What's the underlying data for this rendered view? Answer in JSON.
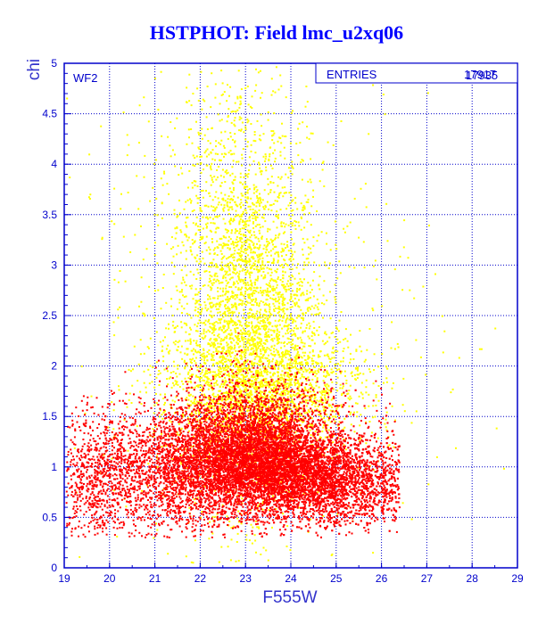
{
  "chart_data": {
    "type": "scatter",
    "title": "HSTPHOT: Field lmc_u2xq06",
    "xlabel": "F555W",
    "ylabel": "chi",
    "xlim": [
      19,
      29
    ],
    "ylim": [
      0,
      5
    ],
    "x_ticks": [
      "19",
      "20",
      "21",
      "22",
      "23",
      "24",
      "25",
      "26",
      "27",
      "28",
      "29"
    ],
    "y_ticks": [
      "0",
      "0.5",
      "1",
      "1.5",
      "2",
      "2.5",
      "3",
      "3.5",
      "4",
      "4.5",
      "5"
    ],
    "grid": true,
    "panel_label": "WF2",
    "stats_box": {
      "label": "ENTRIES",
      "value_a": "17917",
      "value_b": "17935"
    },
    "colors": {
      "series_yellow": "#ffff00",
      "series_red": "#ff0000",
      "axis": "#0000cc",
      "grid": "#0000cc",
      "title": "#0000ff"
    },
    "series": [
      {
        "color": "#ffff00",
        "marker": "dot",
        "values": [
          [
            22.3,
            2.5
          ],
          [
            22.6,
            3.2
          ],
          [
            22.9,
            4.6
          ],
          [
            23.1,
            2.9
          ],
          [
            23.3,
            3.5
          ],
          [
            23.5,
            3.8
          ],
          [
            23.2,
            2.2
          ],
          [
            22.5,
            2.1
          ],
          [
            22.8,
            2.7
          ],
          [
            23.7,
            2.4
          ],
          [
            24.1,
            2.6
          ],
          [
            24.4,
            2.2
          ],
          [
            24.8,
            2.0
          ],
          [
            25.2,
            1.9
          ],
          [
            21.7,
            2.9
          ],
          [
            21.4,
            2.4
          ],
          [
            20.9,
            2.0
          ],
          [
            20.2,
            1.8
          ],
          [
            19.6,
            1.7
          ],
          [
            23.0,
            3.9
          ],
          [
            22.7,
            4.1
          ],
          [
            23.4,
            4.3
          ],
          [
            22.4,
            3.6
          ],
          [
            23.9,
            3.1
          ],
          [
            24.3,
            3.0
          ],
          [
            21.9,
            3.3
          ],
          [
            22.1,
            2.8
          ],
          [
            23.6,
            2.0
          ],
          [
            24.0,
            1.9
          ],
          [
            22.2,
            1.8
          ]
        ],
        "density_clusters": [
          {
            "x": 23.1,
            "y": 2.3,
            "sx": 0.8,
            "sy": 0.85,
            "n": 2700
          },
          {
            "x": 23.4,
            "y": 1.7,
            "sx": 1.2,
            "sy": 0.35,
            "n": 1600
          },
          {
            "x": 22.8,
            "y": 3.5,
            "sx": 0.8,
            "sy": 0.9,
            "n": 700
          },
          {
            "x": 23.0,
            "y": 2.5,
            "sx": 2.1,
            "sy": 1.3,
            "n": 500
          }
        ]
      },
      {
        "color": "#ff0000",
        "marker": "dot",
        "values": [
          [
            19.3,
            0.9
          ],
          [
            19.8,
            1.1
          ],
          [
            20.4,
            0.7
          ],
          [
            21.0,
            1.0
          ],
          [
            21.6,
            1.2
          ],
          [
            22.2,
            0.9
          ],
          [
            22.8,
            1.1
          ],
          [
            23.3,
            1.0
          ],
          [
            23.9,
            0.95
          ],
          [
            24.5,
            0.9
          ],
          [
            25.0,
            0.85
          ],
          [
            25.5,
            0.8
          ],
          [
            26.0,
            0.75
          ],
          [
            26.4,
            0.6
          ],
          [
            24.2,
            1.3
          ],
          [
            23.6,
            1.5
          ],
          [
            22.4,
            1.4
          ],
          [
            20.6,
            1.3
          ],
          [
            25.8,
            1.1
          ],
          [
            24.8,
            0.5
          ]
        ],
        "density_clusters": [
          {
            "x": 24.6,
            "y": 0.88,
            "sx": 0.95,
            "sy": 0.23,
            "n": 5200
          },
          {
            "x": 23.3,
            "y": 1.08,
            "sx": 0.75,
            "sy": 0.25,
            "n": 3300
          },
          {
            "x": 22.3,
            "y": 1.02,
            "sx": 0.8,
            "sy": 0.27,
            "n": 1800
          },
          {
            "x": 20.8,
            "y": 0.95,
            "sx": 1.1,
            "sy": 0.3,
            "n": 1500
          },
          {
            "x": 19.6,
            "y": 0.9,
            "sx": 0.45,
            "sy": 0.3,
            "n": 350
          },
          {
            "x": 23.3,
            "y": 1.5,
            "sx": 1.1,
            "sy": 0.25,
            "n": 900
          }
        ]
      }
    ]
  }
}
